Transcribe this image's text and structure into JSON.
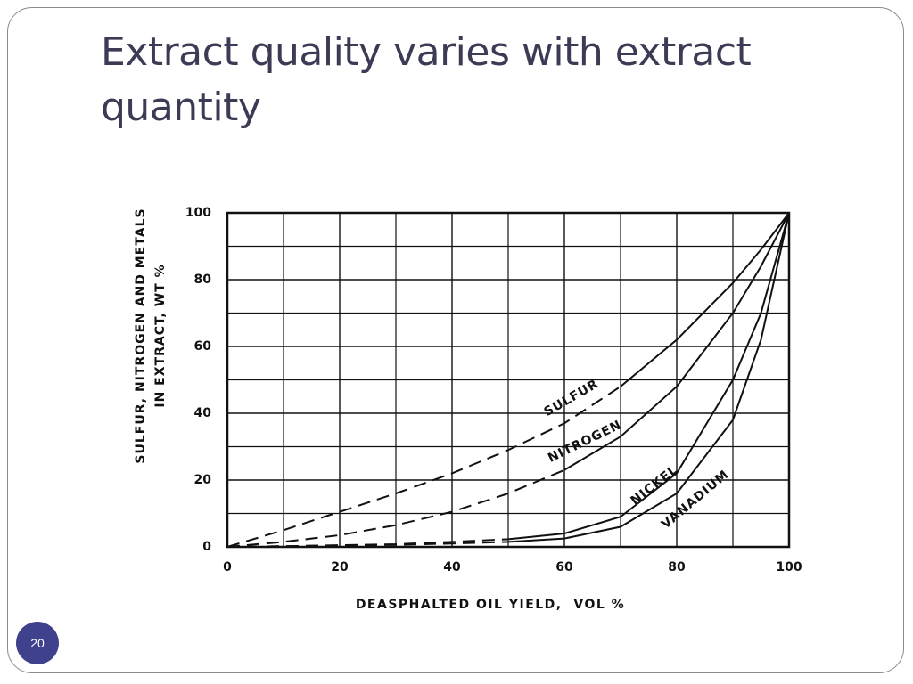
{
  "title": "Extract quality varies with extract quantity",
  "page_number": "20",
  "chart_data": {
    "type": "line",
    "x_label": "DEASPHALTED OIL YIELD,  VOL %",
    "y_label": [
      "SULFUR, NITROGEN AND METALS",
      "IN EXTRACT, WT %"
    ],
    "x": [
      0,
      10,
      20,
      30,
      40,
      50,
      60,
      70,
      80,
      90,
      95,
      100
    ],
    "xlim": [
      0,
      100
    ],
    "xticks": [
      0,
      20,
      40,
      60,
      80,
      100
    ],
    "ylim": [
      0,
      100
    ],
    "yticks": [
      0,
      20,
      40,
      60,
      80,
      100
    ],
    "grid": true,
    "series": [
      {
        "name": "SULFUR",
        "color": "#111111",
        "values": [
          0,
          5,
          10.5,
          16,
          22,
          29,
          37,
          48,
          62,
          79,
          89,
          100
        ],
        "dashed": [
          true,
          true,
          true,
          true,
          true,
          true,
          true,
          true,
          false,
          false,
          false,
          false
        ]
      },
      {
        "name": "NITROGEN",
        "color": "#111111",
        "values": [
          0,
          1.5,
          3.5,
          6.5,
          10.5,
          16,
          23,
          33,
          48,
          70,
          84,
          100
        ],
        "dashed": [
          true,
          true,
          true,
          true,
          true,
          true,
          true,
          false,
          false,
          false,
          false,
          false
        ]
      },
      {
        "name": "NICKEL",
        "color": "#111111",
        "values": [
          0,
          0.2,
          0.5,
          0.8,
          1.5,
          2.3,
          4,
          9,
          22,
          50,
          70,
          100
        ],
        "dashed": [
          true,
          true,
          true,
          true,
          true,
          true,
          false,
          false,
          false,
          false,
          false,
          false
        ]
      },
      {
        "name": "VANADIUM",
        "color": "#111111",
        "values": [
          0,
          0.2,
          0.4,
          0.6,
          1,
          1.5,
          2.5,
          6,
          16,
          38,
          62,
          100
        ],
        "dashed": [
          true,
          true,
          true,
          true,
          true,
          true,
          false,
          false,
          false,
          false,
          false,
          false
        ]
      }
    ]
  }
}
